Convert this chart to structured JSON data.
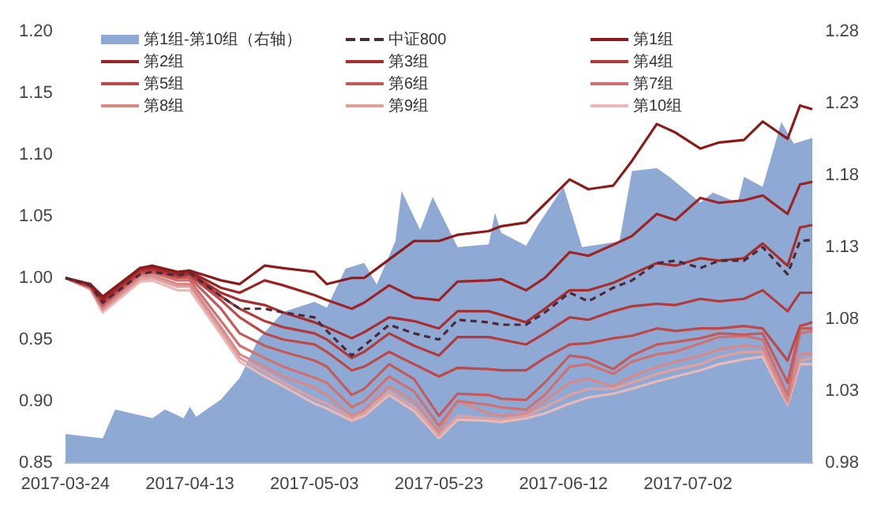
{
  "chart_data": {
    "type": "line",
    "y2label": null,
    "legend": "top",
    "grid": false,
    "marker": "none",
    "xlim": [
      "2017-03-24",
      "2017-07-22"
    ],
    "xticks": [
      "2017-03-24",
      "2017-04-13",
      "2017-05-03",
      "2017-05-23",
      "2017-06-12",
      "2017-07-02"
    ],
    "ylim": [
      0.85,
      1.2
    ],
    "yticks": [
      {
        "value": 0.85,
        "label": "0.85"
      },
      {
        "value": 0.9,
        "label": "0.90"
      },
      {
        "value": 0.95,
        "label": "0.95"
      },
      {
        "value": 1.0,
        "label": "1.00"
      },
      {
        "value": 1.05,
        "label": "1.05"
      },
      {
        "value": 1.1,
        "label": "1.10"
      },
      {
        "value": 1.15,
        "label": "1.15"
      },
      {
        "value": 1.2,
        "label": "1.20"
      }
    ],
    "y2lim": [
      0.98,
      1.28
    ],
    "y2ticks": [
      0.98,
      1.03,
      1.08,
      1.13,
      1.18,
      1.23,
      1.28
    ],
    "x": [
      "2017-03-24",
      "2017-03-28",
      "2017-03-30",
      "2017-04-05",
      "2017-04-07",
      "2017-04-11",
      "2017-04-13",
      "2017-04-18",
      "2017-04-21",
      "2017-04-25",
      "2017-04-28",
      "2017-05-03",
      "2017-05-05",
      "2017-05-09",
      "2017-05-11",
      "2017-05-15",
      "2017-05-19",
      "2017-05-23",
      "2017-05-26",
      "2017-05-31",
      "2017-06-02",
      "2017-06-06",
      "2017-06-09",
      "2017-06-13",
      "2017-06-16",
      "2017-06-20",
      "2017-06-23",
      "2017-06-27",
      "2017-06-30",
      "2017-07-04",
      "2017-07-07",
      "2017-07-11",
      "2017-07-14",
      "2017-07-18",
      "2017-07-20",
      "2017-07-22"
    ],
    "series": [
      {
        "name": "第1组-第10组（右轴）",
        "type": "area",
        "axis": "y2",
        "color": "#8eaad4",
        "x": [
          "2017-03-24",
          "2017-03-30",
          "2017-04-01",
          "2017-04-07",
          "2017-04-09",
          "2017-04-12",
          "2017-04-13",
          "2017-04-14",
          "2017-04-18",
          "2017-04-21",
          "2017-04-24",
          "2017-04-28",
          "2017-05-03",
          "2017-05-05",
          "2017-05-08",
          "2017-05-11",
          "2017-05-13",
          "2017-05-16",
          "2017-05-17",
          "2017-05-20",
          "2017-05-22",
          "2017-05-26",
          "2017-05-31",
          "2017-06-01",
          "2017-06-02",
          "2017-06-06",
          "2017-06-08",
          "2017-06-12",
          "2017-06-15",
          "2017-06-21",
          "2017-06-23",
          "2017-06-27",
          "2017-06-29",
          "2017-07-04",
          "2017-07-06",
          "2017-07-10",
          "2017-07-11",
          "2017-07-14",
          "2017-07-17",
          "2017-07-19",
          "2017-07-22"
        ],
        "values": [
          1.0,
          0.997,
          1.017,
          1.011,
          1.017,
          1.011,
          1.019,
          1.012,
          1.024,
          1.039,
          1.066,
          1.085,
          1.092,
          1.088,
          1.115,
          1.119,
          1.104,
          1.134,
          1.169,
          1.142,
          1.165,
          1.13,
          1.132,
          1.154,
          1.14,
          1.131,
          1.146,
          1.172,
          1.13,
          1.134,
          1.183,
          1.185,
          1.179,
          1.161,
          1.168,
          1.161,
          1.179,
          1.172,
          1.217,
          1.202,
          1.206
        ]
      },
      {
        "name": "中证800",
        "color": "#4a2a3a",
        "line_style": "dashed",
        "values": [
          1.0,
          0.994,
          0.98,
          1.003,
          1.005,
          1.002,
          1.004,
          0.985,
          0.975,
          0.975,
          0.972,
          0.968,
          0.957,
          0.937,
          0.945,
          0.962,
          0.955,
          0.95,
          0.966,
          0.964,
          0.962,
          0.962,
          0.972,
          0.988,
          0.981,
          0.992,
          0.998,
          1.012,
          1.014,
          1.008,
          1.014,
          1.014,
          1.025,
          1.003,
          1.03,
          1.031
        ]
      },
      {
        "name": "第1组",
        "color": "#8b1a1a",
        "values": [
          1.0,
          0.995,
          0.985,
          1.008,
          1.01,
          1.005,
          1.006,
          0.998,
          0.995,
          1.01,
          1.008,
          1.005,
          0.995,
          1.0,
          1.0,
          1.015,
          1.03,
          1.03,
          1.035,
          1.038,
          1.042,
          1.045,
          1.06,
          1.08,
          1.072,
          1.075,
          1.095,
          1.125,
          1.118,
          1.105,
          1.11,
          1.112,
          1.127,
          1.113,
          1.14,
          1.137
        ]
      },
      {
        "name": "第2组",
        "color": "#9c2424",
        "values": [
          1.0,
          0.995,
          0.983,
          1.008,
          1.009,
          1.004,
          1.005,
          0.992,
          0.988,
          0.998,
          0.994,
          0.986,
          0.982,
          0.975,
          0.98,
          0.994,
          0.984,
          0.982,
          0.997,
          0.998,
          0.999,
          0.99,
          1.0,
          1.021,
          1.018,
          1.027,
          1.034,
          1.052,
          1.047,
          1.065,
          1.061,
          1.063,
          1.067,
          1.052,
          1.076,
          1.078
        ]
      },
      {
        "name": "第3组",
        "color": "#a82e2e",
        "values": [
          1.0,
          0.994,
          0.982,
          1.007,
          1.008,
          1.003,
          1.004,
          0.988,
          0.982,
          0.978,
          0.972,
          0.964,
          0.96,
          0.951,
          0.956,
          0.968,
          0.965,
          0.959,
          0.973,
          0.973,
          0.97,
          0.964,
          0.975,
          0.99,
          0.99,
          0.996,
          1.003,
          1.012,
          1.01,
          1.016,
          1.014,
          1.016,
          1.028,
          1.01,
          1.041,
          1.043
        ]
      },
      {
        "name": "第4组",
        "color": "#b23a3a",
        "values": [
          1.0,
          0.994,
          0.981,
          1.006,
          1.007,
          1.002,
          1.003,
          0.985,
          0.975,
          0.965,
          0.96,
          0.955,
          0.95,
          0.935,
          0.94,
          0.955,
          0.945,
          0.937,
          0.952,
          0.952,
          0.95,
          0.946,
          0.955,
          0.968,
          0.966,
          0.973,
          0.977,
          0.979,
          0.978,
          0.983,
          0.981,
          0.983,
          0.99,
          0.973,
          0.988,
          0.988
        ]
      },
      {
        "name": "第5组",
        "color": "#bc4848",
        "values": [
          1.0,
          0.993,
          0.98,
          1.005,
          1.006,
          1.001,
          1.002,
          0.982,
          0.968,
          0.955,
          0.95,
          0.946,
          0.94,
          0.925,
          0.928,
          0.94,
          0.93,
          0.92,
          0.927,
          0.926,
          0.925,
          0.925,
          0.935,
          0.946,
          0.947,
          0.951,
          0.953,
          0.959,
          0.957,
          0.959,
          0.959,
          0.961,
          0.959,
          0.933,
          0.961,
          0.964
        ]
      },
      {
        "name": "第6组",
        "color": "#c65a5a",
        "values": [
          1.0,
          0.993,
          0.978,
          1.004,
          1.005,
          1.0,
          1.0,
          0.975,
          0.955,
          0.945,
          0.94,
          0.933,
          0.928,
          0.905,
          0.91,
          0.93,
          0.918,
          0.888,
          0.906,
          0.905,
          0.902,
          0.901,
          0.915,
          0.937,
          0.935,
          0.926,
          0.937,
          0.946,
          0.948,
          0.951,
          0.955,
          0.954,
          0.955,
          0.915,
          0.959,
          0.959
        ]
      },
      {
        "name": "第7组",
        "color": "#d07070",
        "values": [
          1.0,
          0.992,
          0.977,
          1.003,
          1.004,
          0.998,
          0.998,
          0.965,
          0.945,
          0.935,
          0.928,
          0.919,
          0.915,
          0.895,
          0.9,
          0.92,
          0.908,
          0.88,
          0.9,
          0.897,
          0.895,
          0.893,
          0.905,
          0.928,
          0.93,
          0.922,
          0.932,
          0.938,
          0.94,
          0.947,
          0.952,
          0.953,
          0.95,
          0.905,
          0.955,
          0.957
        ]
      },
      {
        "name": "第8组",
        "color": "#d98888",
        "values": [
          1.0,
          0.992,
          0.975,
          1.001,
          1.002,
          0.995,
          0.995,
          0.96,
          0.938,
          0.928,
          0.92,
          0.911,
          0.905,
          0.888,
          0.893,
          0.912,
          0.9,
          0.875,
          0.9,
          0.89,
          0.888,
          0.89,
          0.9,
          0.915,
          0.918,
          0.912,
          0.92,
          0.928,
          0.932,
          0.937,
          0.942,
          0.945,
          0.944,
          0.9,
          0.938,
          0.939
        ]
      },
      {
        "name": "第9组",
        "color": "#e0a0a0",
        "values": [
          1.0,
          0.991,
          0.974,
          0.999,
          1.0,
          0.993,
          0.993,
          0.957,
          0.935,
          0.924,
          0.915,
          0.902,
          0.898,
          0.886,
          0.89,
          0.908,
          0.895,
          0.872,
          0.888,
          0.886,
          0.885,
          0.888,
          0.895,
          0.905,
          0.91,
          0.91,
          0.915,
          0.922,
          0.926,
          0.93,
          0.936,
          0.94,
          0.94,
          0.898,
          0.933,
          0.935
        ]
      },
      {
        "name": "第10组",
        "color": "#e8baba",
        "values": [
          1.0,
          0.991,
          0.972,
          0.997,
          0.998,
          0.99,
          0.99,
          0.954,
          0.932,
          0.92,
          0.912,
          0.898,
          0.894,
          0.884,
          0.888,
          0.905,
          0.892,
          0.87,
          0.885,
          0.884,
          0.883,
          0.886,
          0.89,
          0.898,
          0.903,
          0.906,
          0.91,
          0.916,
          0.92,
          0.925,
          0.93,
          0.934,
          0.936,
          0.897,
          0.93,
          0.93
        ]
      }
    ]
  }
}
